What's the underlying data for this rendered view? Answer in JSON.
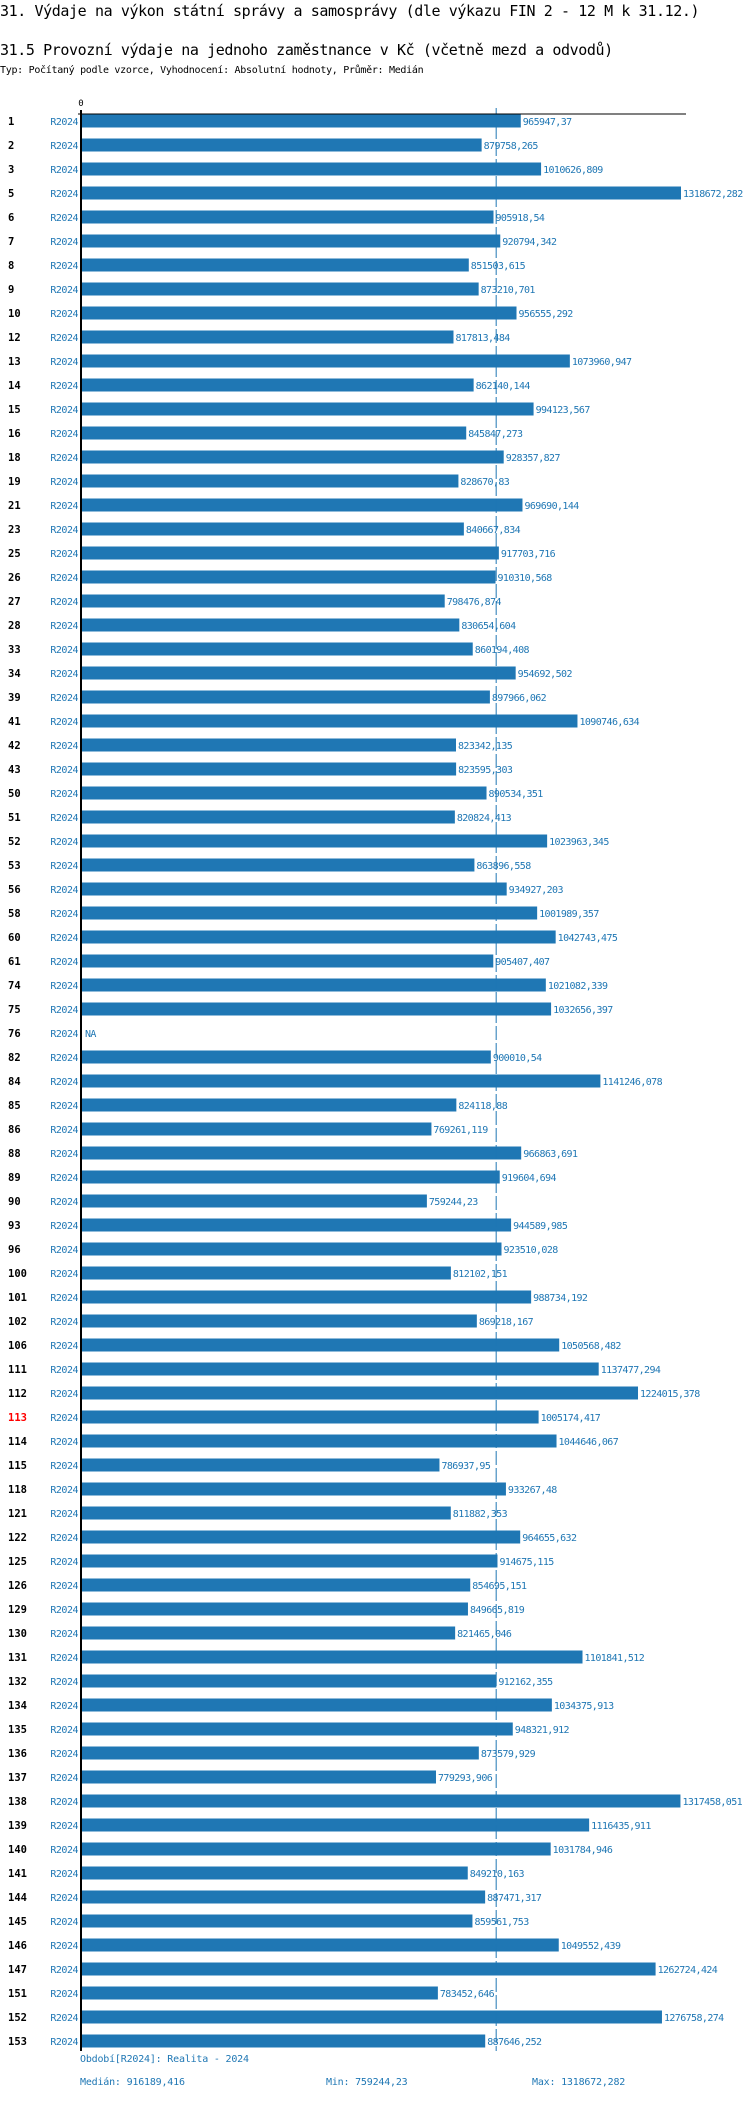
{
  "page": {
    "title": "31. Výdaje na výkon státní správy a samosprávy (dle výkazu FIN 2 - 12 M k 31.12.)",
    "subtitle": "31.5 Provozní výdaje na jednoho zaměstnance v Kč (včetně mezd a odvodů)",
    "meta": "Typ: Počítaný podle vzorce, Vyhodnocení: Absolutní hodnoty, Průměr: Medián"
  },
  "colors": {
    "bar": "#1f77b4",
    "text_accent": "#1f77b4",
    "highlight_label": "#ff0000",
    "axis": "#000000"
  },
  "footer": {
    "period": "Období[R2024]: Realita - 2024",
    "median": "Medián: 916189,416",
    "min": "Min: 759244,23",
    "max": "Max: 1318672,282"
  },
  "chart_data": {
    "type": "bar",
    "orientation": "horizontal",
    "title": "31.5 Provozní výdaje na jednoho zaměstnance v Kč (včetně mezd a odvodů)",
    "xlabel": "",
    "ylabel": "",
    "x_tick_labels": [
      "0"
    ],
    "xlim": [
      0,
      1318672.282
    ],
    "series_name": "R2024",
    "median": 916189.416,
    "median_line": "dashed",
    "highlighted_category": "113",
    "categories": [
      "1",
      "2",
      "3",
      "5",
      "6",
      "7",
      "8",
      "9",
      "10",
      "12",
      "13",
      "14",
      "15",
      "16",
      "18",
      "19",
      "21",
      "23",
      "25",
      "26",
      "27",
      "28",
      "33",
      "34",
      "39",
      "41",
      "42",
      "43",
      "50",
      "51",
      "52",
      "53",
      "56",
      "58",
      "60",
      "61",
      "74",
      "75",
      "76",
      "82",
      "84",
      "85",
      "86",
      "88",
      "89",
      "90",
      "93",
      "96",
      "100",
      "101",
      "102",
      "106",
      "111",
      "112",
      "113",
      "114",
      "115",
      "118",
      "121",
      "122",
      "125",
      "126",
      "129",
      "130",
      "131",
      "132",
      "134",
      "135",
      "136",
      "137",
      "138",
      "139",
      "140",
      "141",
      "144",
      "145",
      "146",
      "147",
      "151",
      "152",
      "153"
    ],
    "values": [
      965947.37,
      879758.265,
      1010626.809,
      1318672.282,
      905918.54,
      920794.342,
      851503.615,
      873210.701,
      956555.292,
      817813.484,
      1073960.947,
      862140.144,
      994123.567,
      845847.273,
      928357.827,
      828670.83,
      969690.144,
      840667.834,
      917703.716,
      910310.568,
      798476.874,
      830654.604,
      860194.408,
      954692.502,
      897966.062,
      1090746.634,
      823342.135,
      823595.303,
      890534.351,
      820824.413,
      1023963.345,
      863896.558,
      934927.203,
      1001989.357,
      1042743.475,
      905407.407,
      1021082.339,
      1032656.397,
      null,
      900010.54,
      1141246.078,
      824118.88,
      769261.119,
      966863.691,
      919604.694,
      759244.23,
      944589.985,
      923510.028,
      812102.151,
      988734.192,
      869218.167,
      1050568.482,
      1137477.294,
      1224015.378,
      1005174.417,
      1044646.067,
      786937.95,
      933267.48,
      811882.353,
      964655.632,
      914675.115,
      854695.151,
      849665.819,
      821465.046,
      1101841.512,
      912162.355,
      1034375.913,
      948321.912,
      873579.929,
      779293.906,
      1317458.051,
      1116435.911,
      1031784.946,
      849210.163,
      887471.317,
      859561.753,
      1049552.439,
      1262724.424,
      783452.646,
      1276758.274,
      887646.252
    ],
    "value_labels": [
      "965947,37",
      "879758,265",
      "1010626,809",
      "1318672,282",
      "905918,54",
      "920794,342",
      "851503,615",
      "873210,701",
      "956555,292",
      "817813,484",
      "1073960,947",
      "862140,144",
      "994123,567",
      "845847,273",
      "928357,827",
      "828670,83",
      "969690,144",
      "840667,834",
      "917703,716",
      "910310,568",
      "798476,874",
      "830654,604",
      "860194,408",
      "954692,502",
      "897966,062",
      "1090746,634",
      "823342,135",
      "823595,303",
      "890534,351",
      "820824,413",
      "1023963,345",
      "863896,558",
      "934927,203",
      "1001989,357",
      "1042743,475",
      "905407,407",
      "1021082,339",
      "1032656,397",
      "NA",
      "900010,54",
      "1141246,078",
      "824118,88",
      "769261,119",
      "966863,691",
      "919604,694",
      "759244,23",
      "944589,985",
      "923510,028",
      "812102,151",
      "988734,192",
      "869218,167",
      "1050568,482",
      "1137477,294",
      "1224015,378",
      "1005174,417",
      "1044646,067",
      "786937,95",
      "933267,48",
      "811882,353",
      "964655,632",
      "914675,115",
      "854695,151",
      "849665,819",
      "821465,046",
      "1101841,512",
      "912162,355",
      "1034375,913",
      "948321,912",
      "873579,929",
      "779293,906",
      "1317458,051",
      "1116435,911",
      "1031784,946",
      "849210,163",
      "887471,317",
      "859561,753",
      "1049552,439",
      "1262724,424",
      "783452,646",
      "1276758,274",
      "887646,252"
    ],
    "grid": false,
    "legend": "none"
  }
}
